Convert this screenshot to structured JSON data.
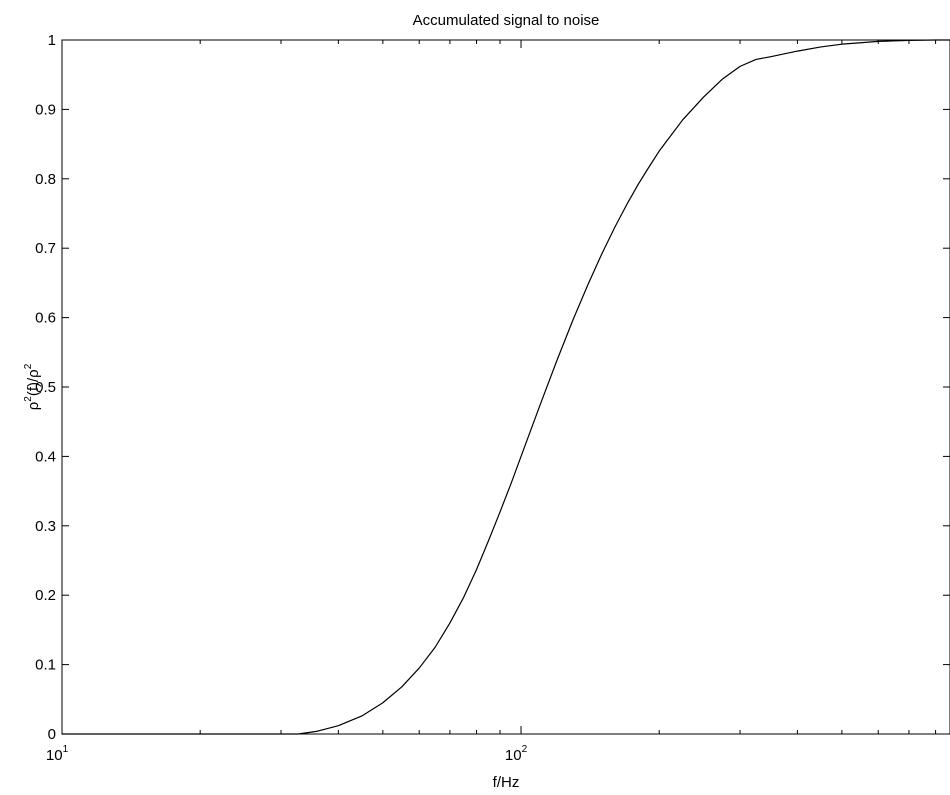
{
  "chart_data": {
    "type": "line",
    "title": "Accumulated signal to noise",
    "xlabel": "f/Hz",
    "ylabel": {
      "base": "ρ",
      "sup1": "2",
      "mid": "(f)/ρ",
      "sup2": "2"
    },
    "x_scale": "log",
    "xlim": [
      10,
      860
    ],
    "ylim": [
      0,
      1
    ],
    "x_ticks": [
      {
        "value": 10,
        "base": "10",
        "exp": "1"
      },
      {
        "value": 100,
        "base": "10",
        "exp": "2"
      }
    ],
    "y_ticks": [
      {
        "value": 0,
        "label": "0"
      },
      {
        "value": 0.1,
        "label": "0.1"
      },
      {
        "value": 0.2,
        "label": "0.2"
      },
      {
        "value": 0.3,
        "label": "0.3"
      },
      {
        "value": 0.4,
        "label": "0.4"
      },
      {
        "value": 0.5,
        "label": "0.5"
      },
      {
        "value": 0.6,
        "label": "0.6"
      },
      {
        "value": 0.7,
        "label": "0.7"
      },
      {
        "value": 0.8,
        "label": "0.8"
      },
      {
        "value": 0.9,
        "label": "0.9"
      },
      {
        "value": 1,
        "label": "1"
      }
    ],
    "grid": false,
    "series": [
      {
        "color": "#000000",
        "x": [
          10,
          25,
          30,
          32.7,
          36,
          40,
          45,
          50,
          55,
          60,
          65,
          70,
          75,
          80,
          85,
          90,
          95,
          100,
          110,
          120,
          130,
          140,
          150,
          160,
          170,
          180,
          190,
          200,
          225,
          250,
          275,
          300,
          325,
          350,
          400,
          450,
          500,
          550,
          600,
          700,
          800,
          860
        ],
        "y": [
          0,
          0,
          0,
          0,
          0.004,
          0.012,
          0.026,
          0.045,
          0.068,
          0.095,
          0.125,
          0.16,
          0.197,
          0.237,
          0.279,
          0.32,
          0.36,
          0.4,
          0.474,
          0.54,
          0.598,
          0.648,
          0.692,
          0.73,
          0.763,
          0.792,
          0.817,
          0.84,
          0.885,
          0.918,
          0.944,
          0.962,
          0.972,
          0.976,
          0.984,
          0.99,
          0.994,
          0.996,
          0.998,
          0.9995,
          1.0,
          1.0
        ]
      }
    ]
  }
}
